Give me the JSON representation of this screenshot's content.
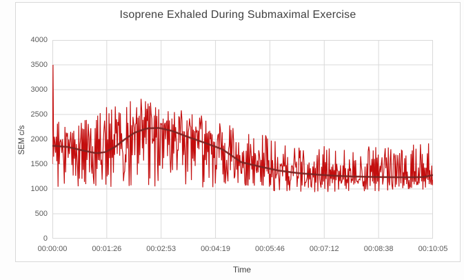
{
  "chart_data": {
    "type": "line",
    "title": "Isoprene Exhaled During Submaximal Exercise",
    "xlabel": "Time",
    "ylabel": "SEM c/s",
    "x_tick_labels": [
      "00:00:00",
      "00:01:26",
      "00:02:53",
      "00:04:19",
      "00:05:46",
      "00:07:12",
      "00:08:38",
      "00:10:05"
    ],
    "x_range_seconds": [
      0,
      605
    ],
    "y_ticks": [
      0,
      500,
      1000,
      1500,
      2000,
      2500,
      3000,
      3500,
      4000
    ],
    "ylim": [
      0,
      4000
    ],
    "grid": true,
    "legend": "none",
    "colors": {
      "raw_series": "#c30e0e",
      "trend_series": "#7b2422",
      "gridline": "#d9d9d9",
      "axis_line": "#bfbfbf",
      "frame_border": "#d8d8d8",
      "title_text": "#404040",
      "tick_text": "#595959"
    },
    "series": [
      {
        "name": "isoprene raw signal",
        "style": "noisy-line",
        "color": "#c30e0e",
        "stroke_width": 1.2,
        "sample_interval_seconds": 1,
        "initial_spike": {
          "t": 1,
          "value": 3500
        },
        "envelope": {
          "t": [
            0,
            60,
            100,
            140,
            180,
            220,
            260,
            310,
            360,
            420,
            480,
            540,
            605
          ],
          "hi": [
            2350,
            2420,
            2800,
            2820,
            2650,
            2550,
            2400,
            2150,
            2050,
            1900,
            1870,
            1860,
            1950
          ],
          "lo": [
            1000,
            1000,
            1050,
            1050,
            1050,
            1020,
            1000,
            990,
            960,
            930,
            940,
            950,
            1000
          ]
        }
      },
      {
        "name": "moving average trend",
        "style": "smooth-line",
        "color": "#7b2422",
        "stroke_width": 2.6,
        "points": {
          "t": [
            0,
            25,
            50,
            70,
            85,
            100,
            115,
            130,
            150,
            170,
            190,
            215,
            240,
            270,
            300,
            330,
            360,
            390,
            420,
            450,
            480,
            520,
            560,
            590,
            605
          ],
          "v": [
            1870,
            1845,
            1770,
            1720,
            1745,
            1850,
            2000,
            2130,
            2220,
            2230,
            2170,
            2050,
            1940,
            1800,
            1540,
            1450,
            1370,
            1320,
            1290,
            1265,
            1250,
            1240,
            1235,
            1240,
            1280
          ]
        }
      }
    ]
  }
}
